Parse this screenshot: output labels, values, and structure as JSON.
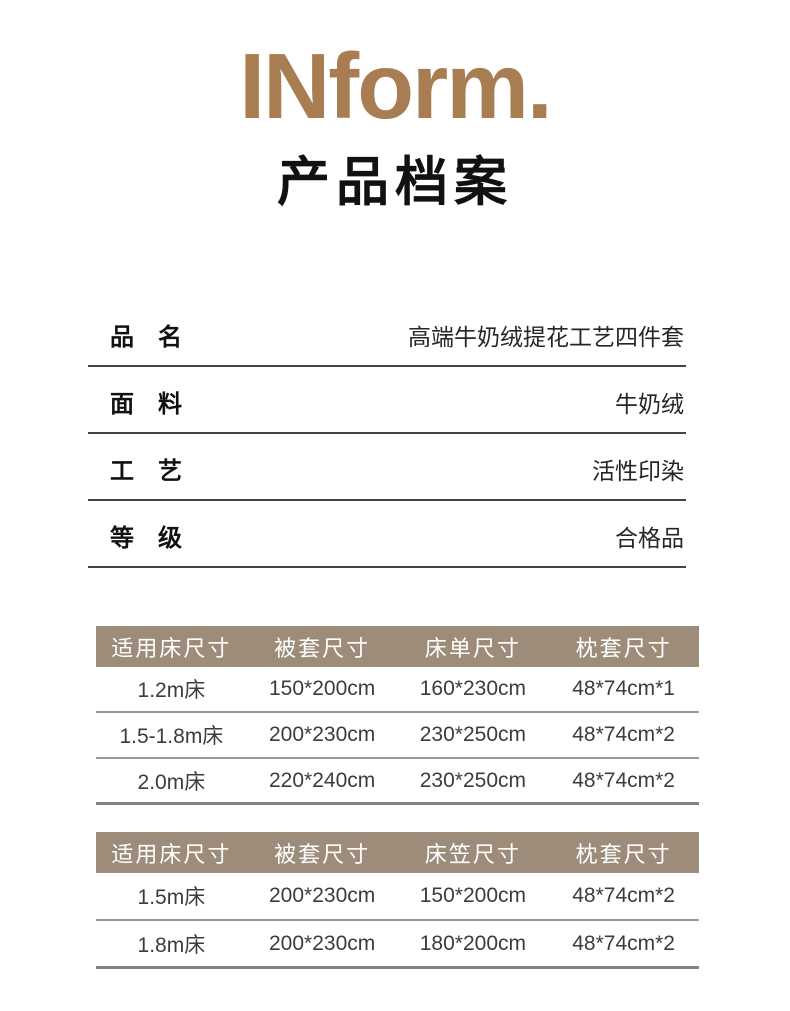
{
  "brand": {
    "logo": "INform.",
    "title": "产品档案"
  },
  "specs": [
    {
      "label": "品　名",
      "value": "高端牛奶绒提花工艺四件套"
    },
    {
      "label": "面　料",
      "value": "牛奶绒"
    },
    {
      "label": "工　艺",
      "value": "活性印染"
    },
    {
      "label": "等　级",
      "value": "合格品"
    }
  ],
  "size_tables": [
    {
      "headers": [
        "适用床尺寸",
        "被套尺寸",
        "床单尺寸",
        "枕套尺寸"
      ],
      "rows": [
        [
          "1.2m床",
          "150*200cm",
          "160*230cm",
          "48*74cm*1"
        ],
        [
          "1.5-1.8m床",
          "200*230cm",
          "230*250cm",
          "48*74cm*2"
        ],
        [
          "2.0m床",
          "220*240cm",
          "230*250cm",
          "48*74cm*2"
        ]
      ]
    },
    {
      "headers": [
        "适用床尺寸",
        "被套尺寸",
        "床笠尺寸",
        "枕套尺寸"
      ],
      "rows": [
        [
          "1.5m床",
          "200*230cm",
          "150*200cm",
          "48*74cm*2"
        ],
        [
          "1.8m床",
          "200*230cm",
          "180*200cm",
          "48*74cm*2"
        ]
      ]
    }
  ],
  "colors": {
    "brand_brown": "#a87d52",
    "table_header_bg": "#9e8c7a",
    "header_text": "#ffffff",
    "divider_dark": "#454545",
    "divider_light": "#999999",
    "divider_end": "#828282",
    "text_dark": "#111111"
  }
}
